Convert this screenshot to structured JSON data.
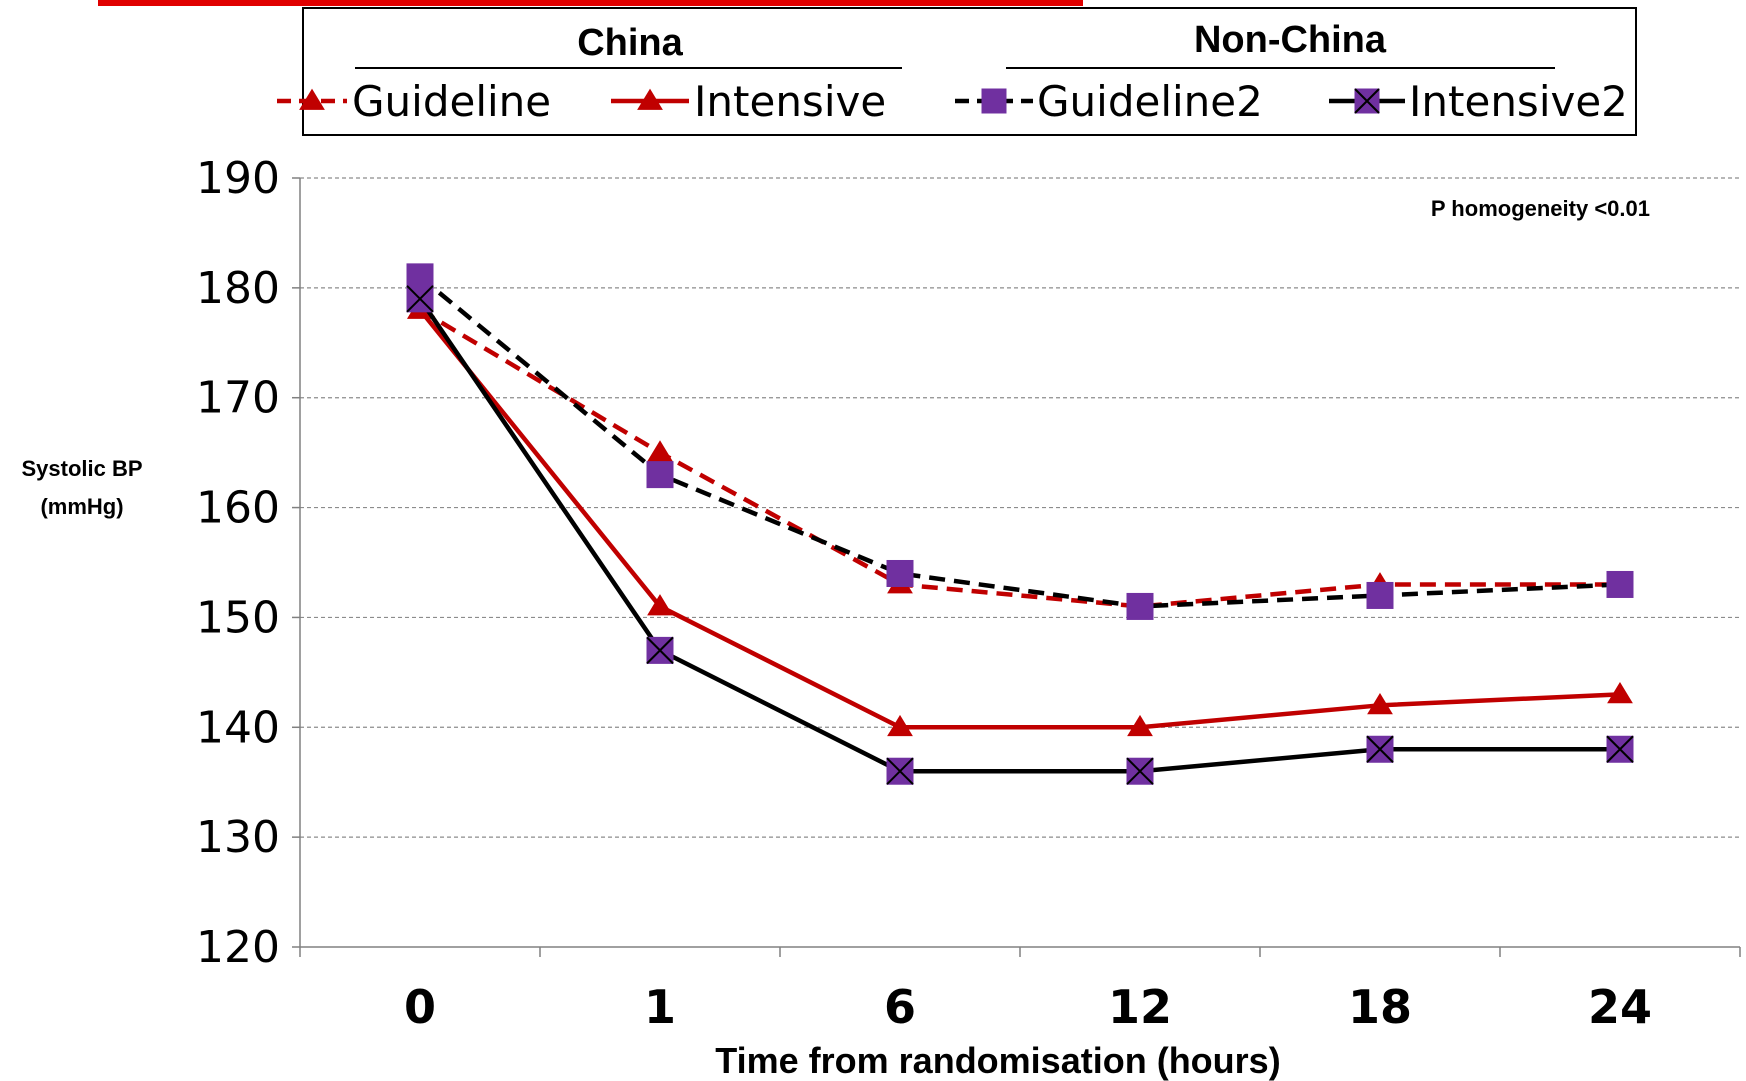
{
  "chart_data": {
    "type": "line",
    "categories": [
      "0",
      "1",
      "6",
      "12",
      "18",
      "24"
    ],
    "xlabel": "Time from randomisation (hours)",
    "ylabel_line1": "Systolic BP",
    "ylabel_line2": "(mmHg)",
    "ylim": [
      120,
      190
    ],
    "yticks": [
      120,
      130,
      140,
      150,
      160,
      170,
      180,
      190
    ],
    "grid": true,
    "annotation": "P homogeneity <0.01",
    "legend_groups": [
      "China",
      "Non-China"
    ],
    "series": [
      {
        "name": "Guideline",
        "group": "China",
        "color": "#c00000",
        "dash": "dashed",
        "marker": "triangle",
        "marker_color": "#c00000",
        "values": [
          178,
          165,
          153,
          151,
          153,
          153
        ]
      },
      {
        "name": "Intensive",
        "group": "China",
        "color": "#c00000",
        "dash": "solid",
        "marker": "triangle",
        "marker_color": "#c00000",
        "values": [
          178,
          151,
          140,
          140,
          142,
          143
        ]
      },
      {
        "name": "Guideline2",
        "group": "Non-China",
        "color": "#000000",
        "dash": "dashed",
        "marker": "square",
        "marker_color": "#7030a0",
        "values": [
          181,
          163,
          154,
          151,
          152,
          153
        ]
      },
      {
        "name": "Intensive2",
        "group": "Non-China",
        "color": "#000000",
        "dash": "solid",
        "marker": "square-x",
        "marker_color": "#7030a0",
        "values": [
          179,
          147,
          136,
          136,
          138,
          138
        ]
      }
    ]
  }
}
